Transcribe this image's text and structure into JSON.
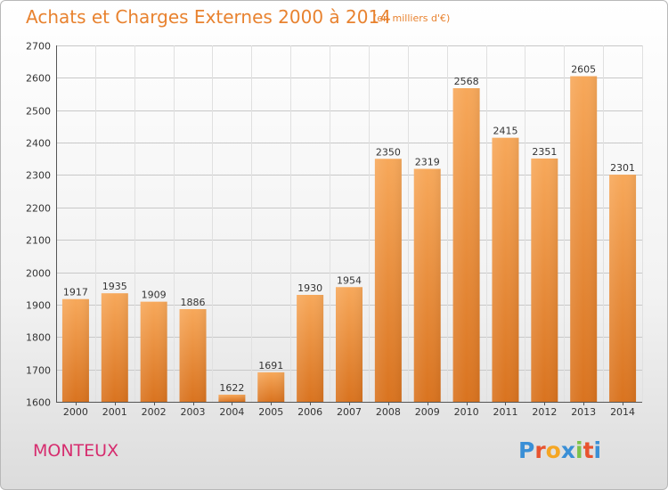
{
  "header": {
    "title": "Achats et Charges Externes 2000 à 2014",
    "subtitle": "(en milliers d'€)"
  },
  "footer": {
    "city": "MONTEUX",
    "logo_letters": [
      "P",
      "r",
      "o",
      "x",
      "i",
      "t",
      "i"
    ],
    "logo_colors": [
      "#3a8fd6",
      "#e8532f",
      "#f5a623",
      "#3a8fd6",
      "#7cc24a",
      "#e8532f",
      "#3a8fd6"
    ]
  },
  "colors": {
    "bar_top": "#f7a85a",
    "bar_bottom": "#d9731f",
    "title": "#e8822f",
    "city": "#d62c6e",
    "grid": "#c8c8c8"
  },
  "chart_data": {
    "type": "bar",
    "categories": [
      "2000",
      "2001",
      "2002",
      "2003",
      "2004",
      "2005",
      "2006",
      "2007",
      "2008",
      "2009",
      "2010",
      "2011",
      "2012",
      "2013",
      "2014"
    ],
    "values": [
      1917,
      1935,
      1909,
      1886,
      1622,
      1691,
      1930,
      1954,
      2350,
      2319,
      2568,
      2415,
      2351,
      2605,
      2301
    ],
    "ylim": [
      1600,
      2700
    ],
    "yticks": [
      1600,
      1700,
      1800,
      1900,
      2000,
      2100,
      2200,
      2300,
      2400,
      2500,
      2600,
      2700
    ],
    "grid": true
  }
}
